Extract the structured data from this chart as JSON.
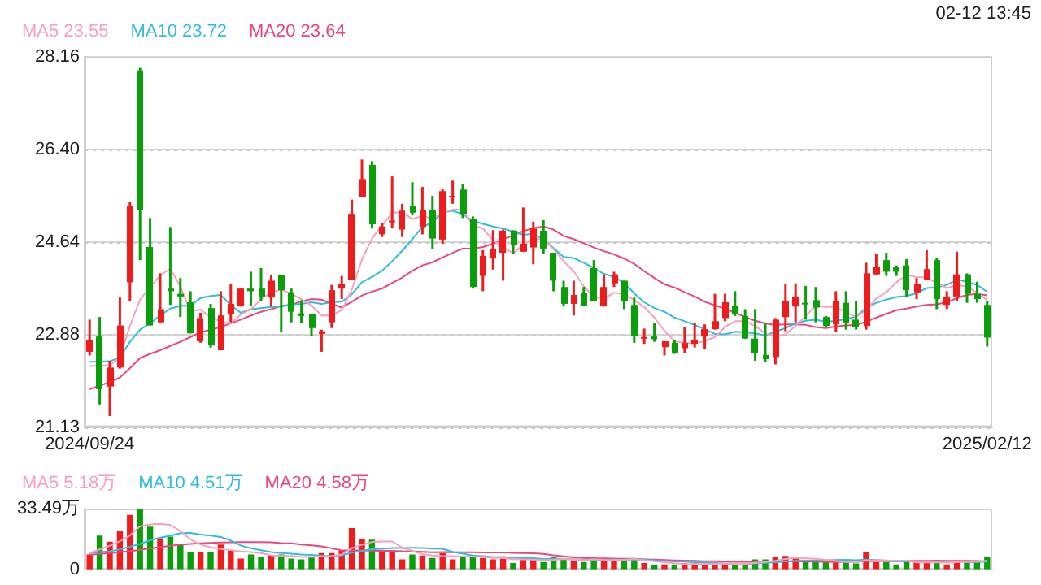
{
  "chart_data": [
    {
      "type": "candlestick",
      "annotations": [
        "02-12 13:45"
      ],
      "categories": [
        "2024/09/24",
        null,
        null,
        null,
        null,
        null,
        null,
        null,
        null,
        null,
        null,
        null,
        null,
        null,
        null,
        null,
        null,
        null,
        null,
        null,
        null,
        null,
        null,
        null,
        null,
        null,
        null,
        null,
        null,
        null,
        null,
        null,
        null,
        null,
        null,
        null,
        null,
        null,
        null,
        null,
        null,
        null,
        null,
        null,
        null,
        null,
        null,
        null,
        null,
        null,
        null,
        null,
        null,
        null,
        null,
        null,
        null,
        null,
        null,
        null,
        null,
        null,
        null,
        null,
        null,
        null,
        null,
        null,
        null,
        null,
        null,
        null,
        null,
        null,
        null,
        null,
        null,
        null,
        null,
        null,
        null,
        null,
        null,
        null,
        null,
        null,
        null,
        null,
        null,
        "2025/02/12"
      ],
      "ohlc": [
        [
          22.56,
          23.17,
          22.49,
          22.78
        ],
        [
          22.85,
          23.22,
          21.56,
          21.85
        ],
        [
          21.9,
          22.39,
          21.34,
          22.26
        ],
        [
          22.26,
          23.59,
          22.24,
          23.06
        ],
        [
          23.88,
          25.4,
          23.52,
          25.32
        ],
        [
          27.9,
          27.95,
          24.3,
          25.26
        ],
        [
          24.55,
          25.1,
          23.06,
          23.06
        ],
        [
          23.12,
          24.05,
          23.12,
          23.37
        ],
        [
          23.76,
          24.93,
          23.45,
          23.71
        ],
        [
          23.66,
          23.96,
          23.22,
          23.61
        ],
        [
          23.5,
          23.71,
          22.91,
          22.91
        ],
        [
          22.76,
          23.3,
          22.73,
          23.2
        ],
        [
          23.39,
          23.47,
          22.64,
          22.68
        ],
        [
          22.59,
          23.71,
          22.59,
          23.25
        ],
        [
          23.27,
          23.84,
          23.12,
          23.47
        ],
        [
          23.42,
          23.76,
          23.42,
          23.76
        ],
        [
          23.76,
          24.08,
          23.44,
          23.71
        ],
        [
          23.76,
          24.15,
          23.52,
          23.61
        ],
        [
          23.59,
          24.02,
          23.42,
          23.91
        ],
        [
          24.02,
          24.02,
          22.93,
          23.73
        ],
        [
          23.69,
          23.76,
          23.12,
          23.32
        ],
        [
          23.29,
          23.54,
          23.1,
          23.24
        ],
        [
          23.27,
          23.27,
          22.85,
          23.01
        ],
        [
          22.9,
          22.98,
          22.56,
          22.95
        ],
        [
          23.12,
          23.83,
          23.01,
          23.73
        ],
        [
          23.76,
          24.0,
          23.56,
          23.84
        ],
        [
          23.93,
          25.45,
          23.93,
          25.18
        ],
        [
          25.49,
          26.21,
          25.49,
          25.84
        ],
        [
          26.11,
          26.18,
          24.9,
          24.98
        ],
        [
          24.79,
          25.0,
          24.74,
          24.94
        ],
        [
          25.02,
          25.89,
          24.92,
          25.05
        ],
        [
          24.88,
          25.37,
          24.74,
          25.24
        ],
        [
          25.32,
          25.78,
          25.16,
          25.2
        ],
        [
          24.93,
          25.69,
          24.79,
          25.26
        ],
        [
          25.26,
          25.52,
          24.51,
          24.71
        ],
        [
          24.69,
          25.65,
          24.61,
          25.61
        ],
        [
          25.5,
          25.81,
          25.37,
          25.52
        ],
        [
          25.64,
          25.75,
          25.1,
          25.18
        ],
        [
          25.08,
          25.13,
          23.76,
          23.79
        ],
        [
          24.0,
          24.49,
          23.71,
          24.38
        ],
        [
          24.33,
          24.87,
          24.12,
          24.52
        ],
        [
          24.44,
          24.88,
          23.91,
          24.86
        ],
        [
          24.86,
          24.87,
          24.42,
          24.59
        ],
        [
          24.46,
          25.3,
          24.46,
          24.61
        ],
        [
          24.54,
          25.03,
          24.22,
          24.9
        ],
        [
          24.86,
          25.06,
          24.42,
          24.52
        ],
        [
          24.44,
          24.44,
          23.71,
          23.91
        ],
        [
          23.79,
          23.91,
          23.42,
          23.47
        ],
        [
          23.47,
          23.91,
          23.25,
          23.64
        ],
        [
          23.68,
          23.79,
          23.42,
          23.44
        ],
        [
          24.15,
          24.3,
          23.52,
          23.52
        ],
        [
          23.42,
          24.02,
          23.42,
          23.79
        ],
        [
          23.86,
          24.08,
          23.79,
          24.03
        ],
        [
          23.91,
          23.91,
          23.37,
          23.52
        ],
        [
          23.45,
          23.59,
          22.73,
          22.86
        ],
        [
          22.82,
          23.0,
          22.71,
          22.84
        ],
        [
          22.85,
          23.1,
          22.75,
          22.8
        ],
        [
          22.65,
          22.76,
          22.49,
          22.76
        ],
        [
          22.73,
          22.78,
          22.52,
          22.54
        ],
        [
          22.63,
          23.03,
          22.54,
          22.73
        ],
        [
          22.71,
          23.1,
          22.64,
          22.78
        ],
        [
          22.85,
          23.08,
          22.62,
          22.99
        ],
        [
          22.99,
          23.66,
          22.98,
          23.14
        ],
        [
          23.2,
          23.66,
          23.14,
          23.5
        ],
        [
          23.44,
          23.71,
          23.24,
          23.27
        ],
        [
          23.24,
          23.37,
          22.81,
          22.81
        ],
        [
          22.81,
          23.37,
          22.39,
          22.54
        ],
        [
          22.5,
          23.1,
          22.36,
          22.42
        ],
        [
          22.46,
          23.2,
          22.32,
          23.17
        ],
        [
          23.22,
          23.84,
          22.95,
          23.52
        ],
        [
          23.42,
          23.86,
          23.12,
          23.61
        ],
        [
          23.49,
          23.81,
          23.17,
          23.47
        ],
        [
          23.54,
          23.79,
          23.12,
          23.4
        ],
        [
          23.22,
          23.24,
          23.03,
          23.05
        ],
        [
          23.08,
          23.71,
          22.93,
          23.52
        ],
        [
          23.49,
          23.71,
          22.98,
          23.1
        ],
        [
          23.17,
          23.52,
          22.98,
          23.03
        ],
        [
          23.05,
          24.25,
          22.98,
          24.05
        ],
        [
          24.03,
          24.42,
          24.03,
          24.17
        ],
        [
          24.3,
          24.44,
          24.0,
          24.08
        ],
        [
          24.17,
          24.2,
          24.0,
          24.08
        ],
        [
          24.2,
          24.32,
          23.61,
          23.73
        ],
        [
          23.69,
          23.96,
          23.56,
          23.84
        ],
        [
          23.93,
          24.49,
          23.93,
          24.13
        ],
        [
          24.3,
          24.35,
          23.37,
          23.56
        ],
        [
          23.45,
          23.71,
          23.37,
          23.61
        ],
        [
          23.61,
          24.46,
          23.52,
          24.03
        ],
        [
          24.03,
          24.05,
          23.49,
          23.66
        ],
        [
          23.66,
          23.89,
          23.49,
          23.56
        ],
        [
          23.45,
          23.52,
          22.66,
          22.83
        ]
      ],
      "colors": [
        "#ee1c1c",
        "#0b9e0b",
        "#ee1c1c",
        "#ee1c1c",
        "#ee1c1c",
        "#0b9e0b",
        "#0b9e0b",
        "#ee1c1c",
        "#0b9e0b",
        "#0b9e0b",
        "#0b9e0b",
        "#ee1c1c",
        "#0b9e0b",
        "#ee1c1c",
        "#ee1c1c",
        "#ee1c1c",
        "#0b9e0b",
        "#0b9e0b",
        "#ee1c1c",
        "#0b9e0b",
        "#0b9e0b",
        "#0b9e0b",
        "#0b9e0b",
        "#ee1c1c",
        "#ee1c1c",
        "#ee1c1c",
        "#ee1c1c",
        "#ee1c1c",
        "#0b9e0b",
        "#ee1c1c",
        "#ee1c1c",
        "#ee1c1c",
        "#0b9e0b",
        "#ee1c1c",
        "#0b9e0b",
        "#ee1c1c",
        "#ee1c1c",
        "#0b9e0b",
        "#0b9e0b",
        "#ee1c1c",
        "#ee1c1c",
        "#ee1c1c",
        "#0b9e0b",
        "#ee1c1c",
        "#ee1c1c",
        "#0b9e0b",
        "#0b9e0b",
        "#0b9e0b",
        "#ee1c1c",
        "#0b9e0b",
        "#0b9e0b",
        "#ee1c1c",
        "#ee1c1c",
        "#0b9e0b",
        "#0b9e0b",
        "#ee1c1c",
        "#0b9e0b",
        "#ee1c1c",
        "#0b9e0b",
        "#ee1c1c",
        "#ee1c1c",
        "#ee1c1c",
        "#ee1c1c",
        "#ee1c1c",
        "#0b9e0b",
        "#0b9e0b",
        "#0b9e0b",
        "#0b9e0b",
        "#ee1c1c",
        "#ee1c1c",
        "#ee1c1c",
        "#0b9e0b",
        "#0b9e0b",
        "#0b9e0b",
        "#ee1c1c",
        "#0b9e0b",
        "#0b9e0b",
        "#ee1c1c",
        "#ee1c1c",
        "#0b9e0b",
        "#0b9e0b",
        "#0b9e0b",
        "#ee1c1c",
        "#ee1c1c",
        "#0b9e0b",
        "#ee1c1c",
        "#ee1c1c",
        "#0b9e0b",
        "#0b9e0b",
        "#0b9e0b"
      ],
      "series": [
        {
          "name": "MA5 23.55",
          "type": "line",
          "color": "#f9a0bd",
          "values": [
            22.29,
            22.3,
            22.3,
            22.45,
            23.05,
            23.55,
            23.79,
            24.01,
            24.14,
            23.8,
            23.33,
            23.36,
            23.22,
            23.13,
            23.1,
            23.27,
            23.37,
            23.56,
            23.69,
            23.74,
            23.66,
            23.56,
            23.44,
            23.25,
            23.25,
            23.35,
            23.74,
            24.31,
            24.71,
            24.96,
            25.2,
            25.21,
            25.08,
            25.14,
            25.09,
            25.2,
            25.26,
            25.26,
            24.96,
            24.9,
            24.68,
            24.55,
            24.43,
            24.59,
            24.7,
            24.7,
            24.51,
            24.28,
            24.09,
            23.8,
            23.6,
            23.57,
            23.68,
            23.66,
            23.54,
            23.41,
            23.21,
            22.96,
            22.76,
            22.73,
            22.72,
            22.76,
            22.84,
            23.03,
            23.14,
            23.14,
            23.05,
            22.91,
            22.84,
            22.89,
            23.05,
            23.24,
            23.43,
            23.41,
            23.41,
            23.31,
            23.22,
            23.35,
            23.57,
            23.69,
            23.88,
            24.02,
            23.98,
            23.97,
            23.87,
            23.77,
            23.83,
            23.8,
            23.68,
            23.54
          ]
        },
        {
          "name": "MA10 23.72",
          "type": "line",
          "color": "#2fbde0",
          "values": [
            22.37,
            22.37,
            22.38,
            22.45,
            22.75,
            22.98,
            23.1,
            23.25,
            23.38,
            23.43,
            23.44,
            23.58,
            23.62,
            23.64,
            23.45,
            23.3,
            23.37,
            23.39,
            23.41,
            23.42,
            23.46,
            23.47,
            23.5,
            23.47,
            23.5,
            23.51,
            23.65,
            23.88,
            23.98,
            24.1,
            24.28,
            24.48,
            24.7,
            24.93,
            25.02,
            25.2,
            25.24,
            25.17,
            25.05,
            24.99,
            24.94,
            24.9,
            24.84,
            24.78,
            24.8,
            24.69,
            24.53,
            24.36,
            24.34,
            24.25,
            24.15,
            24.04,
            23.98,
            23.87,
            23.67,
            23.5,
            23.39,
            23.32,
            23.21,
            23.14,
            23.07,
            22.99,
            22.9,
            22.89,
            22.94,
            22.93,
            22.91,
            22.87,
            22.94,
            23.01,
            23.1,
            23.15,
            23.17,
            23.13,
            23.15,
            23.18,
            23.23,
            23.39,
            23.49,
            23.55,
            23.6,
            23.62,
            23.67,
            23.77,
            23.78,
            23.83,
            23.93,
            23.89,
            23.83,
            23.7
          ]
        },
        {
          "name": "MA20 23.64",
          "type": "line",
          "color": "#f0457a",
          "values": [
            21.85,
            21.92,
            21.98,
            22.07,
            22.25,
            22.44,
            22.52,
            22.59,
            22.67,
            22.75,
            22.84,
            22.93,
            22.98,
            23.03,
            23.1,
            23.17,
            23.25,
            23.32,
            23.37,
            23.43,
            23.45,
            23.52,
            23.56,
            23.55,
            23.47,
            23.4,
            23.51,
            23.63,
            23.7,
            23.76,
            23.87,
            23.97,
            24.1,
            24.2,
            24.26,
            24.35,
            24.44,
            24.52,
            24.52,
            24.55,
            24.61,
            24.69,
            24.77,
            24.85,
            24.91,
            24.94,
            24.88,
            24.76,
            24.7,
            24.62,
            24.54,
            24.47,
            24.41,
            24.33,
            24.23,
            24.09,
            23.96,
            23.84,
            23.78,
            23.69,
            23.61,
            23.51,
            23.44,
            23.38,
            23.3,
            23.22,
            23.15,
            23.1,
            23.07,
            23.08,
            23.08,
            23.07,
            23.03,
            23.01,
            23.04,
            23.06,
            23.07,
            23.13,
            23.21,
            23.28,
            23.35,
            23.38,
            23.42,
            23.45,
            23.46,
            23.5,
            23.58,
            23.64,
            23.66,
            23.63
          ]
        }
      ],
      "ylim": [
        21.13,
        28.16
      ],
      "yticks": [
        21.13,
        22.88,
        24.64,
        {
          "value": 26.4,
          "label": "26.40"
        },
        28.16
      ],
      "grid": "y",
      "legend": "top left",
      "marker": "none"
    },
    {
      "type": "bar",
      "tick_labels": "y",
      "categories": [
        null,
        null,
        null,
        null,
        null,
        null,
        null,
        null,
        null,
        null,
        null,
        null,
        null,
        null,
        null,
        null,
        null,
        null,
        null,
        null,
        null,
        null,
        null,
        null,
        null,
        null,
        null,
        null,
        null,
        null,
        null,
        null,
        null,
        null,
        null,
        null,
        null,
        null,
        null,
        null,
        null,
        null,
        null,
        null,
        null,
        null,
        null,
        null,
        null,
        null,
        null,
        null,
        null,
        null,
        null,
        null,
        null,
        null,
        null,
        null,
        null,
        null,
        null,
        null,
        null,
        null,
        null,
        null,
        null,
        null,
        null,
        null,
        null,
        null,
        null,
        null,
        null,
        null,
        null,
        null,
        null,
        null,
        null,
        null,
        null,
        null,
        null,
        null,
        null,
        null
      ],
      "series": [
        {
          "type": "bar",
          "colors": [
            "#ee1c1c",
            "#0b9e0b",
            "#ee1c1c",
            "#ee1c1c",
            "#ee1c1c",
            "#0b9e0b",
            "#0b9e0b",
            "#ee1c1c",
            "#0b9e0b",
            "#0b9e0b",
            "#0b9e0b",
            "#ee1c1c",
            "#0b9e0b",
            "#ee1c1c",
            "#ee1c1c",
            "#ee1c1c",
            "#0b9e0b",
            "#0b9e0b",
            "#ee1c1c",
            "#0b9e0b",
            "#0b9e0b",
            "#0b9e0b",
            "#0b9e0b",
            "#ee1c1c",
            "#ee1c1c",
            "#ee1c1c",
            "#ee1c1c",
            "#ee1c1c",
            "#0b9e0b",
            "#ee1c1c",
            "#ee1c1c",
            "#ee1c1c",
            "#0b9e0b",
            "#ee1c1c",
            "#0b9e0b",
            "#ee1c1c",
            "#ee1c1c",
            "#0b9e0b",
            "#0b9e0b",
            "#ee1c1c",
            "#ee1c1c",
            "#ee1c1c",
            "#0b9e0b",
            "#ee1c1c",
            "#ee1c1c",
            "#0b9e0b",
            "#0b9e0b",
            "#0b9e0b",
            "#ee1c1c",
            "#0b9e0b",
            "#0b9e0b",
            "#ee1c1c",
            "#ee1c1c",
            "#0b9e0b",
            "#0b9e0b",
            "#ee1c1c",
            "#0b9e0b",
            "#ee1c1c",
            "#0b9e0b",
            "#ee1c1c",
            "#ee1c1c",
            "#ee1c1c",
            "#ee1c1c",
            "#ee1c1c",
            "#0b9e0b",
            "#0b9e0b",
            "#0b9e0b",
            "#0b9e0b",
            "#ee1c1c",
            "#ee1c1c",
            "#ee1c1c",
            "#0b9e0b",
            "#0b9e0b",
            "#0b9e0b",
            "#ee1c1c",
            "#0b9e0b",
            "#0b9e0b",
            "#ee1c1c",
            "#ee1c1c",
            "#0b9e0b",
            "#0b9e0b",
            "#0b9e0b",
            "#ee1c1c",
            "#ee1c1c",
            "#0b9e0b",
            "#ee1c1c",
            "#ee1c1c",
            "#0b9e0b",
            "#0b9e0b",
            "#0b9e0b"
          ],
          "values": [
            8.2,
            18.6,
            15.3,
            21.3,
            30.0,
            33.49,
            23.5,
            17.2,
            18.0,
            13.7,
            9.8,
            9.8,
            9.3,
            13.7,
            10.4,
            6.0,
            8.2,
            6.8,
            7.6,
            8.2,
            6.0,
            5.5,
            7.1,
            9.0,
            9.0,
            10.4,
            22.7,
            16.9,
            16.4,
            10.4,
            10.4,
            5.5,
            8.2,
            7.6,
            6.3,
            9.0,
            5.5,
            7.1,
            6.8,
            6.3,
            5.5,
            6.0,
            3.5,
            6.0,
            6.0,
            4.1,
            6.6,
            6.0,
            4.9,
            4.1,
            6.6,
            4.9,
            5.5,
            5.5,
            6.0,
            3.5,
            2.2,
            2.7,
            2.7,
            3.5,
            3.3,
            2.7,
            3.3,
            3.3,
            2.7,
            3.3,
            5.5,
            5.5,
            6.8,
            7.4,
            6.8,
            4.1,
            4.1,
            4.1,
            4.1,
            4.1,
            3.3,
            9.3,
            4.1,
            4.1,
            2.7,
            4.1,
            4.1,
            4.1,
            4.1,
            2.7,
            4.9,
            4.9,
            4.9,
            6.8
          ]
        },
        {
          "name": "MA5 5.18万",
          "type": "line",
          "color": "#f9a0bd",
          "values": [
            9.0,
            11.0,
            13.0,
            15.5,
            18.68,
            23.74,
            24.72,
            25.1,
            24.44,
            21.18,
            16.44,
            13.7,
            12.12,
            11.26,
            10.6,
            9.84,
            9.52,
            9.02,
            7.8,
            7.36,
            7.36,
            6.82,
            6.88,
            7.16,
            7.32,
            8.2,
            11.64,
            13.6,
            15.08,
            15.36,
            15.36,
            11.92,
            10.18,
            8.42,
            7.6,
            7.32,
            7.32,
            7.1,
            6.94,
            6.94,
            6.24,
            6.34,
            5.62,
            5.46,
            5.4,
            5.12,
            5.24,
            5.74,
            5.52,
            5.14,
            5.64,
            5.3,
            5.2,
            5.32,
            5.7,
            5.08,
            4.54,
            3.98,
            3.42,
            2.92,
            2.88,
            2.98,
            3.1,
            3.22,
            3.06,
            3.06,
            3.62,
            4.06,
            4.76,
            5.7,
            6.4,
            6.12,
            5.84,
            5.3,
            4.64,
            4.1,
            3.94,
            4.98,
            4.98,
            4.98,
            4.7,
            4.86,
            3.82,
            3.82,
            3.82,
            3.82,
            3.98,
            4.14,
            4.3,
            4.84
          ]
        },
        {
          "name": "MA10 4.51万",
          "type": "line",
          "color": "#2fbde0",
          "values": [
            9.0,
            9.5,
            10.0,
            11.0,
            12.5,
            14.0,
            16.0,
            17.5,
            18.5,
            19.93,
            20.09,
            19.21,
            18.61,
            17.85,
            15.89,
            13.14,
            11.61,
            10.57,
            9.53,
            8.98,
            8.6,
            8.17,
            7.95,
            7.48,
            7.34,
            7.78,
            9.23,
            10.24,
            11.12,
            11.34,
            11.78,
            11.78,
            11.89,
            11.75,
            11.48,
            11.34,
            9.62,
            8.64,
            7.68,
            7.27,
            6.78,
            6.83,
            6.36,
            6.2,
            6.17,
            5.68,
            5.79,
            5.68,
            5.49,
            5.27,
            5.38,
            5.27,
            5.47,
            5.42,
            5.42,
            5.36,
            4.92,
            4.59,
            4.37,
            4.31,
            3.98,
            3.76,
            3.54,
            3.32,
            2.99,
            2.97,
            3.3,
            3.58,
            3.99,
            4.38,
            4.73,
            4.87,
            4.95,
            5.03,
            5.17,
            5.25,
            5.03,
            5.41,
            5.14,
            4.81,
            4.4,
            4.4,
            4.4,
            4.4,
            4.4,
            4.26,
            4.42,
            3.98,
            4.06,
            4.33
          ]
        },
        {
          "name": "MA20 4.58万",
          "type": "line",
          "color": "#f0457a",
          "values": [
            8.0,
            8.5,
            9.0,
            9.5,
            10.0,
            10.8,
            11.5,
            12.2,
            13.0,
            13.6,
            14.0,
            14.3,
            14.6,
            14.8,
            14.9,
            15.0,
            15.0,
            15.0,
            14.9,
            14.45,
            14.34,
            13.69,
            13.28,
            12.66,
            11.61,
            10.46,
            10.42,
            10.41,
            10.33,
            10.16,
            10.19,
            9.98,
            9.92,
            9.62,
            9.41,
            9.56,
            9.43,
            9.44,
            9.4,
            9.31,
            9.28,
            9.31,
            9.13,
            8.98,
            8.83,
            8.51,
            7.71,
            7.16,
            6.59,
            6.27,
            6.08,
            6.05,
            5.92,
            5.81,
            5.8,
            5.52,
            5.36,
            5.14,
            4.93,
            4.79,
            4.68,
            4.52,
            4.51,
            4.37,
            4.21,
            4.17,
            4.11,
            4.09,
            4.18,
            4.35,
            4.36,
            4.32,
            4.25,
            4.18,
            4.08,
            4.11,
            4.17,
            4.5,
            4.57,
            4.6,
            4.57,
            4.64,
            4.68,
            4.72,
            4.79,
            4.76,
            4.73,
            4.7,
            4.6,
            4.23
          ]
        }
      ],
      "ylim": [
        0,
        33.49
      ],
      "yticks": [
        0,
        {
          "value": 33.49,
          "label": "33.49万"
        }
      ],
      "legend": "top left",
      "marker": "none"
    }
  ]
}
